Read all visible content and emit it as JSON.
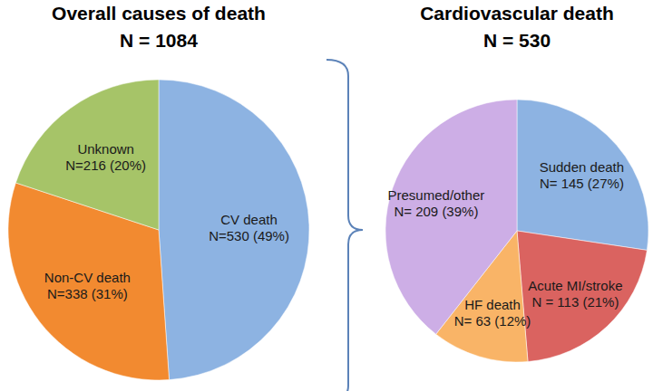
{
  "chart_data": [
    {
      "type": "pie",
      "title": "Overall causes of death",
      "subtitle": "N = 1084",
      "categories": [
        "CV death",
        "Non-CV death",
        "Unknown"
      ],
      "values": [
        530,
        338,
        216
      ],
      "value_labels": [
        "N=530 (49%)",
        "N=338 (31%)",
        "N=216 (20%)"
      ],
      "colors": [
        "#8db3e2",
        "#f28a30",
        "#a6c468"
      ]
    },
    {
      "type": "pie",
      "title": "Cardiovascular death",
      "subtitle": "N = 530",
      "categories": [
        "Sudden death",
        "Acute MI/stroke",
        "HF death",
        "Presumed/other"
      ],
      "values": [
        145,
        113,
        63,
        209
      ],
      "value_labels": [
        "N= 145 (27%)",
        "N = 113 (21%)",
        "N= 63 (12%)",
        "N= 209 (39%)"
      ],
      "colors": [
        "#8db3e2",
        "#da6360",
        "#f9b467",
        "#cdaee6"
      ]
    }
  ]
}
